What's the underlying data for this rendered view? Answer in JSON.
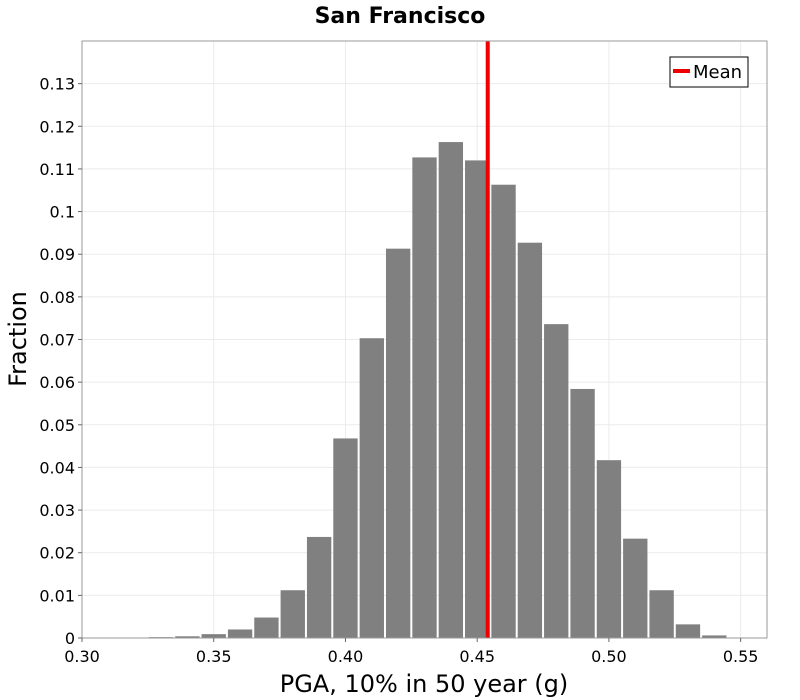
{
  "chart_data": {
    "type": "bar",
    "title": "San Francisco",
    "xlabel": "PGA, 10% in 50 year (g)",
    "ylabel": "Fraction",
    "xlim": [
      0.3,
      0.56
    ],
    "ylim": [
      0,
      0.14
    ],
    "x_ticks": [
      "0.30",
      "0.35",
      "0.40",
      "0.45",
      "0.50",
      "0.55"
    ],
    "y_ticks": [
      "0",
      "0.01",
      "0.02",
      "0.03",
      "0.04",
      "0.05",
      "0.06",
      "0.07",
      "0.08",
      "0.09",
      "0.1",
      "0.11",
      "0.12",
      "0.13"
    ],
    "bin_width": 0.01,
    "bin_centers": [
      0.31,
      0.32,
      0.33,
      0.34,
      0.35,
      0.36,
      0.37,
      0.38,
      0.39,
      0.4,
      0.41,
      0.42,
      0.43,
      0.44,
      0.45,
      0.46,
      0.47,
      0.48,
      0.49,
      0.5,
      0.51,
      0.52,
      0.53,
      0.54,
      0.55
    ],
    "values": [
      0.0001,
      0.0001,
      0.0002,
      0.0004,
      0.0009,
      0.002,
      0.0048,
      0.0112,
      0.0237,
      0.0468,
      0.0703,
      0.0913,
      0.1127,
      0.1163,
      0.112,
      0.1063,
      0.0927,
      0.0736,
      0.0584,
      0.0417,
      0.0233,
      0.0112,
      0.0032,
      0.0006,
      0.0001
    ],
    "bar_color": "#808080",
    "grid": true,
    "mean": {
      "label": "Mean",
      "value": 0.454,
      "color": "#ee0000"
    },
    "legend": {
      "entries": [
        "Mean"
      ],
      "placement": "top-right"
    }
  }
}
